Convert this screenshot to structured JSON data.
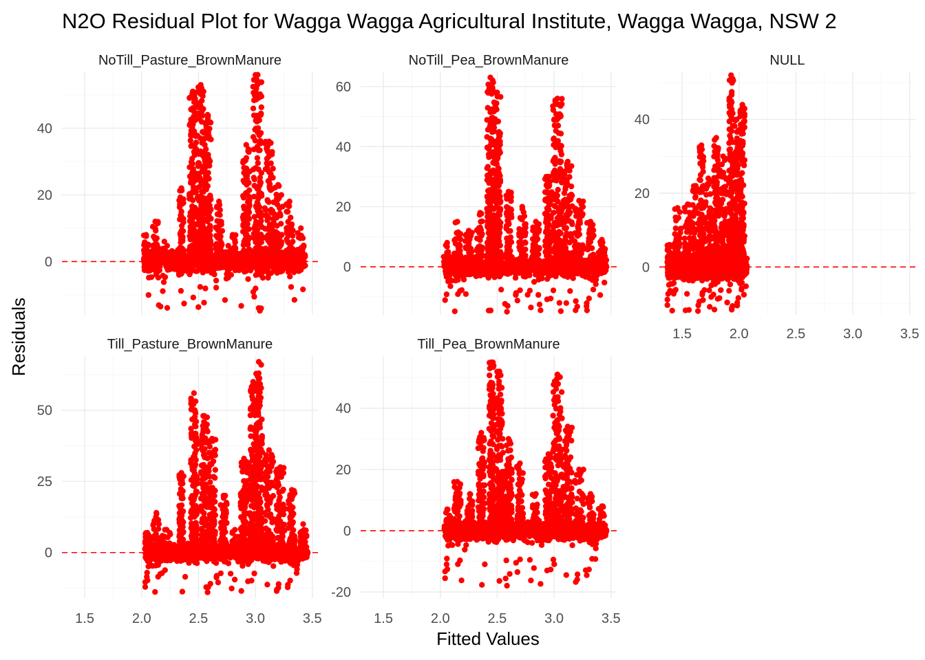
{
  "chart_data": {
    "type": "scatter",
    "title": "N2O Residual Plot for Wagga Wagga Agricultural Institute, Wagga Wagga, NSW 2",
    "xlabel": "Fitted Values",
    "ylabel": "Residuals",
    "layout": "facet_wrap 2 rows x 3 columns, x axis shared, y axis free per panel",
    "grid": true,
    "point_color": "#ff0000",
    "reference_line": {
      "y": 0,
      "style": "dashed",
      "color": "#ff0000"
    },
    "xlim": [
      1.3,
      3.55
    ],
    "x_ticks": [
      1.5,
      2.0,
      2.5,
      3.0,
      3.5
    ],
    "x_tick_labels": [
      "1.5",
      "2.0",
      "2.5",
      "3.0",
      "3.5"
    ],
    "panels": [
      {
        "name": "NoTill_Pasture_BrownManure",
        "ylim": [
          -16,
          57
        ],
        "y_ticks": [
          0,
          20,
          40
        ],
        "y_tick_labels": [
          "0",
          "20",
          "40"
        ],
        "show_x_ticks": false,
        "clusters": [
          {
            "x": 2.04,
            "w": 0.02,
            "base": 0,
            "top": 8
          },
          {
            "x": 2.12,
            "w": 0.03,
            "base": -1,
            "top": 12
          },
          {
            "x": 2.2,
            "w": 0.04,
            "base": 0,
            "top": 6
          },
          {
            "x": 2.35,
            "w": 0.02,
            "base": 0,
            "top": 22
          },
          {
            "x": 2.45,
            "w": 0.03,
            "base": 0,
            "top": 51
          },
          {
            "x": 2.52,
            "w": 0.03,
            "base": 0,
            "top": 53
          },
          {
            "x": 2.58,
            "w": 0.03,
            "base": 0,
            "top": 44
          },
          {
            "x": 2.68,
            "w": 0.03,
            "base": 0,
            "top": 18
          },
          {
            "x": 2.8,
            "w": 0.04,
            "base": 0,
            "top": 8
          },
          {
            "x": 2.92,
            "w": 0.03,
            "base": 0,
            "top": 35
          },
          {
            "x": 3.02,
            "w": 0.04,
            "base": -1,
            "top": 56
          },
          {
            "x": 3.12,
            "w": 0.04,
            "base": 0,
            "top": 36
          },
          {
            "x": 3.2,
            "w": 0.04,
            "base": 0,
            "top": 23
          },
          {
            "x": 3.3,
            "w": 0.03,
            "base": 0,
            "top": 18
          },
          {
            "x": 3.4,
            "w": 0.03,
            "base": 0,
            "top": 10
          }
        ],
        "ymin_point": -15
      },
      {
        "name": "NoTill_Pea_BrownManure",
        "ylim": [
          -16,
          65
        ],
        "y_ticks": [
          0,
          20,
          40,
          60
        ],
        "y_tick_labels": [
          "0",
          "20",
          "40",
          "60"
        ],
        "show_x_ticks": false,
        "clusters": [
          {
            "x": 2.06,
            "w": 0.03,
            "base": 0,
            "top": 8
          },
          {
            "x": 2.15,
            "w": 0.03,
            "base": 0,
            "top": 15
          },
          {
            "x": 2.25,
            "w": 0.03,
            "base": 0,
            "top": 12
          },
          {
            "x": 2.35,
            "w": 0.03,
            "base": 0,
            "top": 18
          },
          {
            "x": 2.44,
            "w": 0.03,
            "base": 0,
            "top": 63
          },
          {
            "x": 2.5,
            "w": 0.03,
            "base": 0,
            "top": 58
          },
          {
            "x": 2.6,
            "w": 0.03,
            "base": 0,
            "top": 25
          },
          {
            "x": 2.72,
            "w": 0.03,
            "base": 0,
            "top": 20
          },
          {
            "x": 2.84,
            "w": 0.03,
            "base": 0,
            "top": 15
          },
          {
            "x": 2.95,
            "w": 0.03,
            "base": 0,
            "top": 30
          },
          {
            "x": 3.03,
            "w": 0.04,
            "base": -1,
            "top": 56
          },
          {
            "x": 3.12,
            "w": 0.04,
            "base": 0,
            "top": 35
          },
          {
            "x": 3.22,
            "w": 0.04,
            "base": 0,
            "top": 22
          },
          {
            "x": 3.32,
            "w": 0.03,
            "base": 0,
            "top": 15
          },
          {
            "x": 3.42,
            "w": 0.03,
            "base": 0,
            "top": 9
          }
        ],
        "ymin_point": -15
      },
      {
        "name": "NULL",
        "ylim": [
          -13,
          53
        ],
        "y_ticks": [
          0,
          20,
          40
        ],
        "y_tick_labels": [
          "0",
          "20",
          "40"
        ],
        "show_x_ticks": true,
        "clusters": [
          {
            "x": 1.39,
            "w": 0.02,
            "base": 0,
            "top": 6
          },
          {
            "x": 1.46,
            "w": 0.03,
            "base": 0,
            "top": 16
          },
          {
            "x": 1.55,
            "w": 0.03,
            "base": 0,
            "top": 17
          },
          {
            "x": 1.62,
            "w": 0.03,
            "base": 0,
            "top": 22
          },
          {
            "x": 1.67,
            "w": 0.02,
            "base": 0,
            "top": 33
          },
          {
            "x": 1.73,
            "w": 0.03,
            "base": 0,
            "top": 24
          },
          {
            "x": 1.8,
            "w": 0.02,
            "base": 0,
            "top": 35
          },
          {
            "x": 1.86,
            "w": 0.03,
            "base": 0,
            "top": 30
          },
          {
            "x": 1.93,
            "w": 0.02,
            "base": 0,
            "top": 52
          },
          {
            "x": 1.98,
            "w": 0.02,
            "base": 0,
            "top": 40
          },
          {
            "x": 2.03,
            "w": 0.02,
            "base": 0,
            "top": 44
          }
        ],
        "ymin_point": -12
      },
      {
        "name": "Till_Pasture_BrownManure",
        "ylim": [
          -16,
          69
        ],
        "y_ticks": [
          0,
          25,
          50
        ],
        "y_tick_labels": [
          "0",
          "25",
          "50"
        ],
        "show_x_ticks": true,
        "clusters": [
          {
            "x": 2.05,
            "w": 0.02,
            "base": 0,
            "top": 7
          },
          {
            "x": 2.13,
            "w": 0.03,
            "base": -1,
            "top": 14
          },
          {
            "x": 2.22,
            "w": 0.04,
            "base": 0,
            "top": 8
          },
          {
            "x": 2.35,
            "w": 0.02,
            "base": 0,
            "top": 28
          },
          {
            "x": 2.46,
            "w": 0.03,
            "base": 0,
            "top": 56
          },
          {
            "x": 2.55,
            "w": 0.03,
            "base": 0,
            "top": 48
          },
          {
            "x": 2.62,
            "w": 0.03,
            "base": 0,
            "top": 40
          },
          {
            "x": 2.72,
            "w": 0.03,
            "base": 0,
            "top": 20
          },
          {
            "x": 2.82,
            "w": 0.03,
            "base": 0,
            "top": 8
          },
          {
            "x": 2.9,
            "w": 0.03,
            "base": 0,
            "top": 33
          },
          {
            "x": 2.98,
            "w": 0.03,
            "base": 0,
            "top": 60
          },
          {
            "x": 3.03,
            "w": 0.03,
            "base": -1,
            "top": 67
          },
          {
            "x": 3.12,
            "w": 0.04,
            "base": 0,
            "top": 36
          },
          {
            "x": 3.22,
            "w": 0.04,
            "base": 0,
            "top": 30
          },
          {
            "x": 3.32,
            "w": 0.03,
            "base": 0,
            "top": 22
          },
          {
            "x": 3.42,
            "w": 0.03,
            "base": 0,
            "top": 10
          }
        ],
        "ymin_point": -14
      },
      {
        "name": "Till_Pea_BrownManure",
        "ylim": [
          -22,
          57
        ],
        "y_ticks": [
          -20,
          0,
          20,
          40
        ],
        "y_tick_labels": [
          "-20",
          "0",
          "20",
          "40"
        ],
        "show_x_ticks": true,
        "clusters": [
          {
            "x": 2.06,
            "w": 0.03,
            "base": 0,
            "top": 7
          },
          {
            "x": 2.15,
            "w": 0.03,
            "base": 0,
            "top": 16
          },
          {
            "x": 2.26,
            "w": 0.03,
            "base": 0,
            "top": 12
          },
          {
            "x": 2.36,
            "w": 0.03,
            "base": 0,
            "top": 32
          },
          {
            "x": 2.45,
            "w": 0.02,
            "base": 0,
            "top": 55
          },
          {
            "x": 2.52,
            "w": 0.03,
            "base": 0,
            "top": 52
          },
          {
            "x": 2.6,
            "w": 0.03,
            "base": 0,
            "top": 30
          },
          {
            "x": 2.7,
            "w": 0.03,
            "base": 0,
            "top": 22
          },
          {
            "x": 2.84,
            "w": 0.03,
            "base": 0,
            "top": 12
          },
          {
            "x": 2.95,
            "w": 0.03,
            "base": 0,
            "top": 25
          },
          {
            "x": 3.03,
            "w": 0.04,
            "base": -1,
            "top": 51
          },
          {
            "x": 3.12,
            "w": 0.04,
            "base": 0,
            "top": 34
          },
          {
            "x": 3.22,
            "w": 0.04,
            "base": 0,
            "top": 20
          },
          {
            "x": 3.32,
            "w": 0.03,
            "base": 0,
            "top": 12
          },
          {
            "x": 3.42,
            "w": 0.03,
            "base": 0,
            "top": 8
          }
        ],
        "ymin_point": -18
      }
    ]
  }
}
